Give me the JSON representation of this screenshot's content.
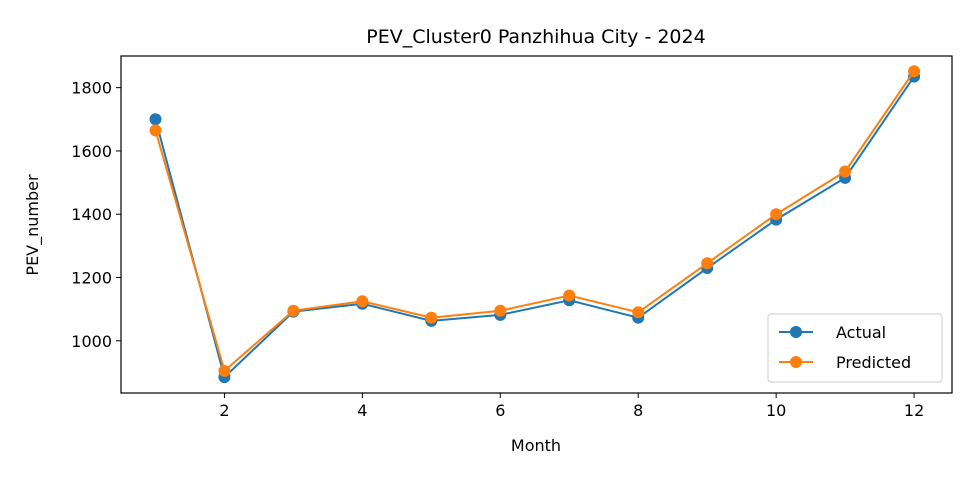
{
  "chart_data": {
    "type": "line",
    "title": "PEV_Cluster0 Panzhihua City - 2024",
    "xlabel": "Month",
    "ylabel": "PEV_number",
    "x": [
      1,
      2,
      3,
      4,
      5,
      6,
      7,
      8,
      9,
      10,
      11,
      12
    ],
    "xlim": [
      0.5,
      12.55
    ],
    "ylim": [
      835,
      1900
    ],
    "xticks": [
      2,
      4,
      6,
      8,
      10,
      12
    ],
    "yticks": [
      1000,
      1200,
      1400,
      1600,
      1800
    ],
    "grid": false,
    "legend_position": "lower-right",
    "series": [
      {
        "name": "Actual",
        "color": "#1f77b4",
        "marker": "circle",
        "values": [
          1700,
          885,
          1092,
          1117,
          1063,
          1082,
          1128,
          1073,
          1230,
          1383,
          1515,
          1835
        ]
      },
      {
        "name": "Predicted",
        "color": "#ff7f0e",
        "marker": "circle",
        "values": [
          1665,
          905,
          1095,
          1125,
          1073,
          1095,
          1143,
          1090,
          1245,
          1400,
          1535,
          1852
        ]
      }
    ]
  }
}
